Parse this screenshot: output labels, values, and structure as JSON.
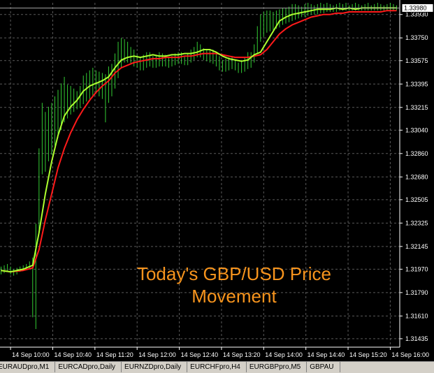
{
  "chart_title_overlay": {
    "line1": "Today's GBP/USD Price",
    "line2": "Movement"
  },
  "current_price_label": "1.33980",
  "tabs": [
    {
      "label": "EURAUDpro,M1"
    },
    {
      "label": "EURCADpro,Daily"
    },
    {
      "label": "EURNZDpro,Daily"
    },
    {
      "label": "EURCHFpro,H4"
    },
    {
      "label": "EURGBPpro,M5"
    },
    {
      "label": "GBPAU"
    }
  ],
  "colors": {
    "background": "#000000",
    "grid": "#5a5a5a",
    "bars": "#33cc33",
    "fast_ma": "#adff2f",
    "slow_ma": "#ff1a1a",
    "overlay_text": "#f7941d",
    "price_line": "#a0a0a0"
  },
  "chart_data": {
    "type": "line",
    "title": "",
    "symbol_pair": "GBP/USD",
    "y_ticks": [
      "1.33930",
      "1.33750",
      "1.33575",
      "1.33395",
      "1.33215",
      "1.33040",
      "1.32860",
      "1.32680",
      "1.32505",
      "1.32325",
      "1.32145",
      "1.31970",
      "1.31790",
      "1.31610",
      "1.31435"
    ],
    "y_tick_values": [
      1.3393,
      1.3375,
      1.33575,
      1.33395,
      1.33215,
      1.3304,
      1.3286,
      1.3268,
      1.32505,
      1.32325,
      1.32145,
      1.3197,
      1.3179,
      1.3161,
      1.31435
    ],
    "ylim": [
      1.3137,
      1.3402
    ],
    "current_price": 1.3398,
    "x_ticks": [
      "14 Sep 10:00",
      "14 Sep 10:40",
      "14 Sep 11:20",
      "14 Sep 12:00",
      "14 Sep 12:40",
      "14 Sep 13:20",
      "14 Sep 14:00",
      "14 Sep 14:40",
      "14 Sep 15:20",
      "14 Sep 16:00"
    ],
    "x_tick_minutes": [
      600,
      640,
      680,
      720,
      760,
      800,
      840,
      880,
      920,
      960
    ],
    "xlim_minutes": [
      590,
      969
    ],
    "bars": {
      "x_minutes": [
        591,
        594,
        597,
        600,
        603,
        606,
        609,
        612,
        615,
        618,
        621,
        624,
        627,
        630,
        633,
        636,
        639,
        642,
        645,
        648,
        651,
        654,
        657,
        660,
        663,
        666,
        669,
        672,
        675,
        678,
        681,
        684,
        687,
        690,
        693,
        696,
        699,
        702,
        705,
        708,
        711,
        714,
        717,
        720,
        723,
        726,
        729,
        732,
        735,
        738,
        741,
        744,
        747,
        750,
        753,
        756,
        759,
        762,
        765,
        768,
        771,
        774,
        777,
        780,
        783,
        786,
        789,
        792,
        795,
        798,
        801,
        804,
        807,
        810,
        813,
        816,
        819,
        822,
        825,
        828,
        831,
        834,
        837,
        840,
        843,
        846,
        849,
        852,
        855,
        858,
        861,
        864,
        867,
        870,
        873,
        876,
        879,
        882,
        885,
        888,
        891,
        894,
        897,
        900,
        903,
        906,
        909,
        912,
        915,
        918,
        921,
        924,
        927,
        930,
        933,
        936,
        939,
        942,
        945,
        948,
        951,
        954,
        957,
        960,
        963,
        966
      ],
      "high": [
        1.3199,
        1.32,
        1.3201,
        1.3199,
        1.3197,
        1.3198,
        1.3199,
        1.32,
        1.3201,
        1.3203,
        1.3206,
        1.3232,
        1.329,
        1.3325,
        1.3318,
        1.3322,
        1.3325,
        1.333,
        1.3335,
        1.334,
        1.3345,
        1.3339,
        1.3338,
        1.3336,
        1.3334,
        1.3338,
        1.3346,
        1.3348,
        1.335,
        1.3352,
        1.335,
        1.3349,
        1.3348,
        1.3347,
        1.3353,
        1.3355,
        1.3363,
        1.3372,
        1.3375,
        1.3374,
        1.3372,
        1.3368,
        1.3366,
        1.3362,
        1.336,
        1.3362,
        1.3364,
        1.3364,
        1.3361,
        1.3362,
        1.3364,
        1.3363,
        1.3362,
        1.336,
        1.3361,
        1.3363,
        1.3364,
        1.3364,
        1.3361,
        1.3363,
        1.3366,
        1.3368,
        1.3372,
        1.337,
        1.3367,
        1.3366,
        1.3366,
        1.3366,
        1.3364,
        1.3361,
        1.3358,
        1.3359,
        1.336,
        1.3361,
        1.3358,
        1.3356,
        1.3358,
        1.336,
        1.3364,
        1.3364,
        1.337,
        1.3384,
        1.3393,
        1.3395,
        1.3396,
        1.3396,
        1.3395,
        1.3396,
        1.3397,
        1.3398,
        1.3398,
        1.3399,
        1.3401,
        1.3401,
        1.34,
        1.3399,
        1.3401,
        1.3402,
        1.3401,
        1.34,
        1.3401,
        1.3402,
        1.3401,
        1.3402,
        1.3401,
        1.34,
        1.3401,
        1.3402,
        1.3401,
        1.3402,
        1.34,
        1.3401,
        1.3402,
        1.3401,
        1.34,
        1.3401,
        1.3402,
        1.34,
        1.3401,
        1.3402,
        1.3401,
        1.34,
        1.3401,
        1.3402,
        1.3401,
        1.34
      ],
      "low": [
        1.3193,
        1.3194,
        1.3195,
        1.3193,
        1.3192,
        1.3193,
        1.3195,
        1.3196,
        1.3197,
        1.3198,
        1.316,
        1.3151,
        1.3225,
        1.327,
        1.3272,
        1.328,
        1.3285,
        1.3292,
        1.3298,
        1.3304,
        1.331,
        1.3313,
        1.3316,
        1.3318,
        1.332,
        1.3321,
        1.3324,
        1.3326,
        1.3328,
        1.333,
        1.3332,
        1.333,
        1.3328,
        1.331,
        1.3325,
        1.333,
        1.3336,
        1.3344,
        1.3352,
        1.3356,
        1.3356,
        1.3355,
        1.3353,
        1.3352,
        1.335,
        1.335,
        1.3352,
        1.3353,
        1.3352,
        1.3352,
        1.3353,
        1.3353,
        1.3353,
        1.3352,
        1.3353,
        1.3354,
        1.3355,
        1.3355,
        1.3354,
        1.3354,
        1.3356,
        1.3358,
        1.336,
        1.336,
        1.3358,
        1.3357,
        1.3356,
        1.3355,
        1.3353,
        1.335,
        1.3349,
        1.3349,
        1.335,
        1.3351,
        1.335,
        1.3348,
        1.3348,
        1.3349,
        1.3351,
        1.3352,
        1.3356,
        1.3363,
        1.3372,
        1.3376,
        1.3379,
        1.338,
        1.3381,
        1.3382,
        1.3383,
        1.3385,
        1.3386,
        1.3387,
        1.3388,
        1.3389,
        1.339,
        1.3391,
        1.3391,
        1.3392,
        1.3393,
        1.3393,
        1.3393,
        1.3394,
        1.3394,
        1.3395,
        1.3395,
        1.3395,
        1.3395,
        1.3396,
        1.3396,
        1.3396,
        1.3396,
        1.3396,
        1.3396,
        1.3396,
        1.3396,
        1.3396,
        1.3396,
        1.3396,
        1.3396,
        1.3396,
        1.3396,
        1.3396,
        1.3396,
        1.3396,
        1.3396,
        1.3396
      ]
    },
    "series": [
      {
        "name": "fast MA",
        "color": "#adff2f",
        "x_minutes": [
          591,
          600,
          612,
          621,
          627,
          633,
          639,
          645,
          651,
          657,
          663,
          669,
          675,
          681,
          687,
          693,
          699,
          705,
          711,
          717,
          723,
          729,
          735,
          741,
          747,
          753,
          759,
          765,
          771,
          777,
          783,
          789,
          795,
          801,
          807,
          813,
          819,
          825,
          831,
          837,
          843,
          849,
          855,
          861,
          867,
          873,
          879,
          885,
          891,
          897,
          903,
          909,
          915,
          921,
          927,
          933,
          939,
          945,
          951,
          957,
          963,
          966
        ],
        "values": [
          1.3196,
          1.3195,
          1.3197,
          1.32,
          1.3225,
          1.3255,
          1.328,
          1.33,
          1.3315,
          1.3322,
          1.3327,
          1.3334,
          1.3338,
          1.334,
          1.3342,
          1.3345,
          1.3352,
          1.3358,
          1.336,
          1.3361,
          1.336,
          1.3361,
          1.3362,
          1.3361,
          1.3361,
          1.3362,
          1.3362,
          1.3363,
          1.3363,
          1.3364,
          1.3366,
          1.3366,
          1.3364,
          1.3361,
          1.3359,
          1.3358,
          1.3357,
          1.3358,
          1.3362,
          1.3364,
          1.3372,
          1.338,
          1.3388,
          1.3391,
          1.3393,
          1.3394,
          1.3395,
          1.3396,
          1.3397,
          1.3397,
          1.3397,
          1.3398,
          1.3397,
          1.3398,
          1.3397,
          1.3398,
          1.3398,
          1.3398,
          1.3398,
          1.3398,
          1.3398,
          1.3398
        ]
      },
      {
        "name": "slow MA",
        "color": "#ff1a1a",
        "x_minutes": [
          591,
          600,
          612,
          621,
          627,
          633,
          639,
          645,
          651,
          657,
          663,
          669,
          675,
          681,
          687,
          693,
          699,
          705,
          711,
          717,
          723,
          729,
          735,
          741,
          747,
          753,
          759,
          765,
          771,
          777,
          783,
          789,
          795,
          801,
          807,
          813,
          819,
          825,
          831,
          837,
          843,
          849,
          855,
          861,
          867,
          873,
          879,
          885,
          891,
          897,
          903,
          909,
          915,
          921,
          927,
          933,
          939,
          945,
          951,
          957,
          963,
          966
        ],
        "values": [
          1.3196,
          1.3195,
          1.3196,
          1.3198,
          1.3212,
          1.3235,
          1.3255,
          1.3275,
          1.329,
          1.3302,
          1.3312,
          1.332,
          1.3327,
          1.3333,
          1.3338,
          1.3342,
          1.3348,
          1.3352,
          1.3354,
          1.3356,
          1.3357,
          1.3358,
          1.3359,
          1.3359,
          1.336,
          1.336,
          1.336,
          1.3361,
          1.3361,
          1.3362,
          1.3363,
          1.3363,
          1.3363,
          1.3362,
          1.3361,
          1.336,
          1.336,
          1.336,
          1.3361,
          1.3362,
          1.3366,
          1.3372,
          1.3378,
          1.3382,
          1.3385,
          1.3387,
          1.3389,
          1.3391,
          1.3392,
          1.3393,
          1.3393,
          1.3394,
          1.3394,
          1.3395,
          1.3395,
          1.3395,
          1.3395,
          1.3395,
          1.3395,
          1.3396,
          1.3396,
          1.3396
        ]
      }
    ],
    "grid": true
  }
}
